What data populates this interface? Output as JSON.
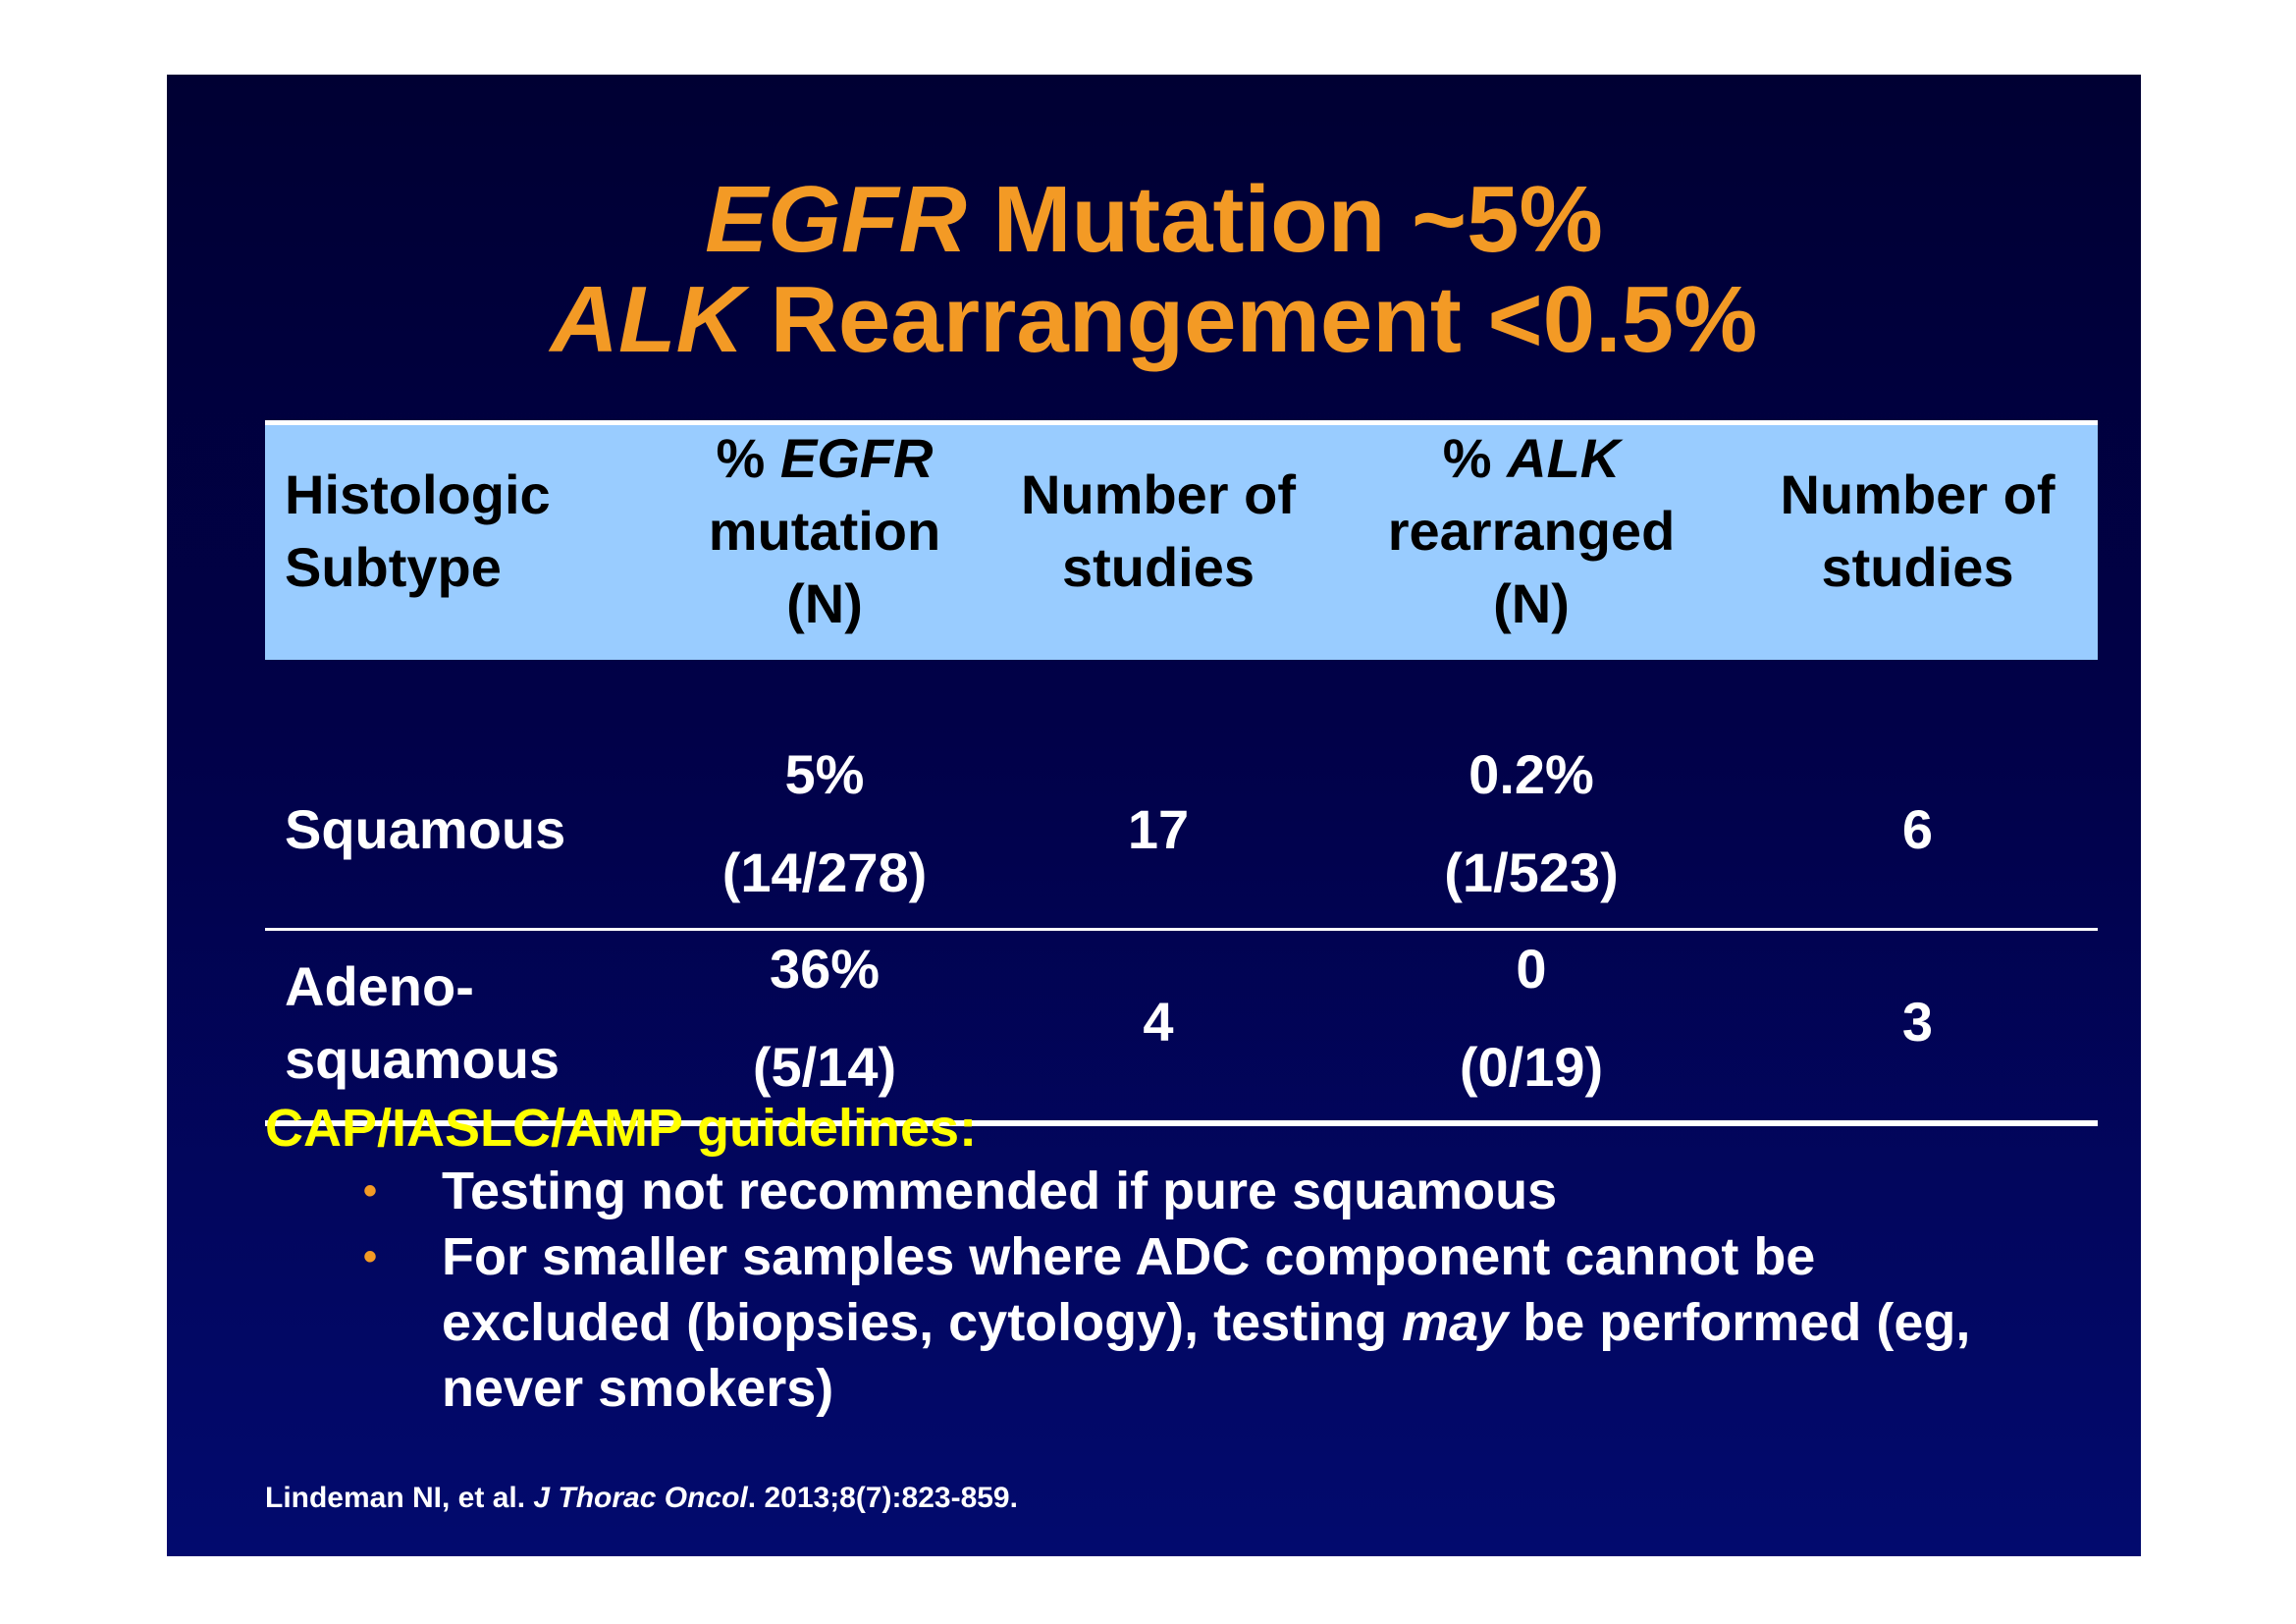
{
  "title": {
    "line1_gene": "EGFR",
    "line1_rest": " Mutation ~5%",
    "line2_gene": "ALK",
    "line2_rest": " Rearrangement <0.5%"
  },
  "table": {
    "headers": {
      "subtype": [
        "Histologic",
        "Subtype"
      ],
      "egfr_pct": {
        "prefix": "% ",
        "gene": "EGFR",
        "line2": "mutation",
        "line3": "(N)"
      },
      "egfr_studies": [
        "Number of",
        "studies"
      ],
      "alk_pct": {
        "prefix": "% ",
        "gene": "ALK",
        "line2": "rearranged",
        "line3": "(N)"
      },
      "alk_studies": [
        "Number of",
        "studies"
      ]
    },
    "rows": [
      {
        "subtype": [
          "Squamous"
        ],
        "egfr_pct": "5%",
        "egfr_n": "(14/278)",
        "egfr_studies": "17",
        "alk_pct": "0.2%",
        "alk_n": "(1/523)",
        "alk_studies": "6"
      },
      {
        "subtype": [
          "Adeno-",
          "squamous"
        ],
        "egfr_pct": "36%",
        "egfr_n": "(5/14)",
        "egfr_studies": "4",
        "alk_pct": "0",
        "alk_n": "(0/19)",
        "alk_studies": "3"
      }
    ]
  },
  "guidelines": {
    "heading": "CAP/IASLC/AMP guidelines:",
    "bullet_char": "•",
    "bullet1": "Testing not recommended if pure squamous",
    "bullet2": {
      "before": "For smaller samples where ADC component cannot be excluded (biopsies, cytology), testing ",
      "emphasis": "may",
      "after": " be performed (eg, never smokers)"
    }
  },
  "reference": {
    "authors": "Lindeman NI, et al. ",
    "journal": "J Thorac Oncol",
    "citation": ". 2013;8(7):823-859."
  },
  "colors": {
    "title": "#f39a25",
    "header_bg": "#99ccff",
    "guidelines_heading": "#ffff00",
    "slide_bg_top": "#000033",
    "slide_bg_bottom": "#020a6e"
  }
}
